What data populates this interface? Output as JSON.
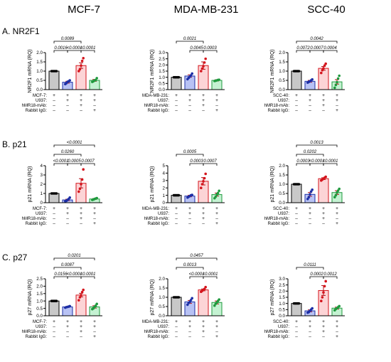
{
  "columns": [
    "MCF-7",
    "MDA-MB-231",
    "SCC-40"
  ],
  "rows": [
    "A. NR2F1",
    "B. p21",
    "C. p27"
  ],
  "cond_rows": [
    {
      "label_by_col": [
        "MCF-7:",
        "MDA-MB-231:",
        "SCC-40:"
      ],
      "signs": [
        "+",
        "+",
        "+",
        "+"
      ]
    },
    {
      "label": "U937:",
      "signs": [
        "–",
        "+",
        "+",
        "+"
      ]
    },
    {
      "label": "hMR18-mAb:",
      "signs": [
        "–",
        "–",
        "+",
        "–"
      ]
    },
    {
      "label": "Rabbit IgG:",
      "signs": [
        "–",
        "–",
        "–",
        "+"
      ]
    }
  ],
  "colors": {
    "bar_fills": [
      "#c8c8c8",
      "#b8c2f4",
      "#fcd4d6",
      "#c4f2d2"
    ],
    "bar_strokes": [
      "#000000",
      "#1d2fa6",
      "#d4141c",
      "#1f9a3e"
    ],
    "point_colors": [
      "#000000",
      "#1d2fa6",
      "#d4141c",
      "#1f9a3e"
    ],
    "errbar": "#b4141a"
  },
  "chart_data": [
    {
      "type": "bar",
      "row": 0,
      "col": 0,
      "cell_line": "MCF-7",
      "ylabel": "NR2F1 mRNA (RQ)",
      "ylim": [
        0,
        2.0
      ],
      "yticks": [
        "0.0",
        "0.5",
        "1.0",
        "1.5",
        "2.0"
      ],
      "tick_values": [
        0,
        0.5,
        1.0,
        1.5,
        2.0
      ],
      "values": [
        1.0,
        0.4,
        1.3,
        0.5
      ],
      "errors": [
        0,
        0.05,
        0.15,
        0.05
      ],
      "points": [
        [
          1,
          1,
          1,
          1,
          1
        ],
        [
          0.3,
          0.35,
          0.42,
          0.45,
          0.5
        ],
        [
          1.0,
          1.1,
          1.3,
          1.55,
          1.7
        ],
        [
          0.42,
          0.45,
          0.5,
          0.52,
          0.62
        ]
      ],
      "comparisons": [
        {
          "from": 0,
          "to": 1,
          "level": 1,
          "p": "0.0016"
        },
        {
          "from": 1,
          "to": 2,
          "level": 1,
          "p": "<0.0001"
        },
        {
          "from": 2,
          "to": 3,
          "level": 1,
          "p": "<0.0001"
        },
        {
          "from": 0,
          "to": 2,
          "level": 2,
          "p": "0.0089"
        }
      ]
    },
    {
      "type": "bar",
      "row": 0,
      "col": 1,
      "cell_line": "MDA-MB-231",
      "ylabel": "NR2F1 mRNA (RQ)",
      "ylim": [
        0,
        3.0
      ],
      "yticks": [
        "0.0",
        "0.5",
        "1.0",
        "1.5",
        "2.0",
        "2.5",
        "3.0"
      ],
      "tick_values": [
        0,
        0.5,
        1.0,
        1.5,
        2.0,
        2.5,
        3.0
      ],
      "values": [
        1.0,
        1.1,
        1.95,
        0.75
      ],
      "errors": [
        0,
        0.1,
        0.3,
        0.05
      ],
      "points": [
        [
          1,
          1,
          1,
          1,
          1
        ],
        [
          0.85,
          0.95,
          1.05,
          1.15,
          1.3
        ],
        [
          1.5,
          1.7,
          1.9,
          2.2,
          2.5
        ],
        [
          0.7,
          0.72,
          0.75,
          0.78,
          0.8
        ]
      ],
      "comparisons": [
        {
          "from": 1,
          "to": 2,
          "level": 1,
          "p": "0.0045"
        },
        {
          "from": 2,
          "to": 3,
          "level": 1,
          "p": "0.0003"
        },
        {
          "from": 0,
          "to": 2,
          "level": 2,
          "p": "0.0021"
        }
      ]
    },
    {
      "type": "bar",
      "row": 0,
      "col": 2,
      "cell_line": "SCC-40",
      "ylabel": "NR2F1 mRNA (RQ)",
      "ylim": [
        0,
        2.0
      ],
      "yticks": [
        "0.0",
        "0.5",
        "1.0",
        "1.5",
        "2.0"
      ],
      "tick_values": [
        0,
        0.5,
        1.0,
        1.5,
        2.0
      ],
      "values": [
        1.0,
        0.45,
        1.15,
        0.42
      ],
      "errors": [
        0,
        0.05,
        0.1,
        0.12
      ],
      "points": [
        [
          1,
          1,
          1,
          1,
          1
        ],
        [
          0.38,
          0.42,
          0.45,
          0.5,
          0.55
        ],
        [
          0.9,
          1.05,
          1.15,
          1.3,
          1.4
        ],
        [
          0.1,
          0.25,
          0.4,
          0.6,
          0.75
        ]
      ],
      "comparisons": [
        {
          "from": 0,
          "to": 1,
          "level": 1,
          "p": "0.0072"
        },
        {
          "from": 1,
          "to": 2,
          "level": 1,
          "p": "0.0007"
        },
        {
          "from": 2,
          "to": 3,
          "level": 1,
          "p": "0.0004"
        },
        {
          "from": 0,
          "to": 3,
          "level": 2,
          "p": "0.0042"
        }
      ]
    },
    {
      "type": "bar",
      "row": 1,
      "col": 0,
      "cell_line": "MCF-7",
      "ylabel": "p21 mRNA (RQ)",
      "ylim": [
        0,
        4.0
      ],
      "yticks": [
        "0",
        "1",
        "2",
        "3",
        "4"
      ],
      "tick_values": [
        0,
        1,
        2,
        3,
        4
      ],
      "values": [
        1.0,
        0.3,
        2.1,
        0.4
      ],
      "errors": [
        0,
        0.08,
        0.5,
        0.05
      ],
      "points": [
        [
          1,
          1,
          1,
          1,
          1
        ],
        [
          0.15,
          0.2,
          0.3,
          0.4,
          0.55
        ],
        [
          1.2,
          1.5,
          2.0,
          2.5,
          3.6
        ],
        [
          0.3,
          0.35,
          0.4,
          0.45,
          0.5
        ]
      ],
      "comparisons": [
        {
          "from": 0,
          "to": 1,
          "level": 1,
          "p": "<0.0001"
        },
        {
          "from": 1,
          "to": 2,
          "level": 1,
          "p": "0.0005"
        },
        {
          "from": 2,
          "to": 3,
          "level": 1,
          "p": "0.0007"
        },
        {
          "from": 0,
          "to": 2,
          "level": 2,
          "p": "0.0260"
        },
        {
          "from": 0,
          "to": 3,
          "level": 3,
          "p": "<0.0001"
        }
      ]
    },
    {
      "type": "bar",
      "row": 1,
      "col": 1,
      "cell_line": "MDA-MB-231",
      "ylabel": "p21 mRNA (RQ)",
      "ylim": [
        0,
        5.0
      ],
      "yticks": [
        "0",
        "1",
        "2",
        "3",
        "4",
        "5"
      ],
      "tick_values": [
        0,
        1,
        2,
        3,
        4,
        5
      ],
      "values": [
        1.0,
        0.9,
        2.9,
        1.1
      ],
      "errors": [
        0,
        0.1,
        0.5,
        0.2
      ],
      "points": [
        [
          1,
          1,
          1,
          1,
          1
        ],
        [
          0.7,
          0.8,
          0.9,
          1.0,
          1.05
        ],
        [
          2.0,
          2.5,
          2.9,
          3.3,
          3.9
        ],
        [
          0.6,
          0.8,
          1.1,
          1.3,
          1.6
        ]
      ],
      "comparisons": [
        {
          "from": 1,
          "to": 2,
          "level": 1,
          "p": "0.0003"
        },
        {
          "from": 2,
          "to": 3,
          "level": 1,
          "p": "0.0007"
        },
        {
          "from": 0,
          "to": 2,
          "level": 2,
          "p": "0.0005"
        }
      ]
    },
    {
      "type": "bar",
      "row": 1,
      "col": 2,
      "cell_line": "SCC-40",
      "ylabel": "p21 mRNA (RQ)",
      "ylim": [
        0,
        2.0
      ],
      "yticks": [
        "0.0",
        "0.5",
        "1.0",
        "1.5",
        "2.0"
      ],
      "tick_values": [
        0,
        0.5,
        1.0,
        1.5,
        2.0
      ],
      "values": [
        1.0,
        0.45,
        1.3,
        0.55
      ],
      "errors": [
        0,
        0.1,
        0.05,
        0.1
      ],
      "points": [
        [
          1,
          1,
          1,
          1,
          1
        ],
        [
          0.2,
          0.3,
          0.45,
          0.6,
          0.7
        ],
        [
          1.2,
          1.25,
          1.3,
          1.35,
          1.4
        ],
        [
          0.3,
          0.4,
          0.55,
          0.65,
          0.75
        ]
      ],
      "comparisons": [
        {
          "from": 0,
          "to": 1,
          "level": 1,
          "p": "0.0003"
        },
        {
          "from": 1,
          "to": 2,
          "level": 1,
          "p": "<0.0001"
        },
        {
          "from": 2,
          "to": 3,
          "level": 1,
          "p": "<0.0001"
        },
        {
          "from": 0,
          "to": 2,
          "level": 2,
          "p": "0.0202"
        },
        {
          "from": 0,
          "to": 3,
          "level": 3,
          "p": "0.0013"
        }
      ]
    },
    {
      "type": "bar",
      "row": 2,
      "col": 0,
      "cell_line": "MCF-7",
      "ylabel": "p27 mRNA (RQ)",
      "ylim": [
        0,
        2.5
      ],
      "yticks": [
        "0.0",
        "0.5",
        "1.0",
        "1.5",
        "2.0",
        "2.5"
      ],
      "tick_values": [
        0,
        0.5,
        1.0,
        1.5,
        2.0,
        2.5
      ],
      "values": [
        1.0,
        0.6,
        1.4,
        0.6
      ],
      "errors": [
        0,
        0.03,
        0.12,
        0.08
      ],
      "points": [
        [
          1,
          1,
          1,
          1,
          1
        ],
        [
          0.55,
          0.58,
          0.6,
          0.62,
          0.65
        ],
        [
          1.05,
          1.25,
          1.4,
          1.6,
          1.75
        ],
        [
          0.45,
          0.5,
          0.6,
          0.68,
          0.8
        ]
      ],
      "comparisons": [
        {
          "from": 0,
          "to": 1,
          "level": 1,
          "p": "0.0156"
        },
        {
          "from": 1,
          "to": 2,
          "level": 1,
          "p": "<0.0001"
        },
        {
          "from": 2,
          "to": 3,
          "level": 1,
          "p": "<0.0001"
        },
        {
          "from": 0,
          "to": 2,
          "level": 2,
          "p": "0.0087"
        },
        {
          "from": 0,
          "to": 3,
          "level": 3,
          "p": "0.0201"
        }
      ]
    },
    {
      "type": "bar",
      "row": 2,
      "col": 1,
      "cell_line": "MDA-MB-231",
      "ylabel": "p27 mRNA (RQ)",
      "ylim": [
        0,
        2.0
      ],
      "yticks": [
        "0.0",
        "0.5",
        "1.0",
        "1.5",
        "2.0"
      ],
      "tick_values": [
        0,
        0.5,
        1.0,
        1.5,
        2.0
      ],
      "values": [
        1.0,
        0.75,
        1.4,
        0.72
      ],
      "errors": [
        0,
        0.08,
        0.05,
        0.08
      ],
      "points": [
        [
          1,
          1,
          1,
          1,
          1
        ],
        [
          0.6,
          0.7,
          0.75,
          0.85,
          0.95
        ],
        [
          1.3,
          1.35,
          1.4,
          1.45,
          1.55
        ],
        [
          0.55,
          0.65,
          0.72,
          0.8,
          0.88
        ]
      ],
      "comparisons": [
        {
          "from": 1,
          "to": 2,
          "level": 1,
          "p": "<0.0001"
        },
        {
          "from": 2,
          "to": 3,
          "level": 1,
          "p": "<0.0001"
        },
        {
          "from": 0,
          "to": 2,
          "level": 2,
          "p": "0.0013"
        },
        {
          "from": 0,
          "to": 3,
          "level": 3,
          "p": "0.0457"
        }
      ]
    },
    {
      "type": "bar",
      "row": 2,
      "col": 2,
      "cell_line": "SCC-40",
      "ylabel": "p27 mRNA (RQ)",
      "ylim": [
        0,
        3.0
      ],
      "yticks": [
        "0.0",
        "0.5",
        "1.0",
        "1.5",
        "2.0",
        "2.5",
        "3.0"
      ],
      "tick_values": [
        0,
        0.5,
        1.0,
        1.5,
        2.0,
        2.5,
        3.0
      ],
      "values": [
        1.0,
        0.4,
        2.05,
        0.62
      ],
      "errors": [
        0,
        0.08,
        0.4,
        0.08
      ],
      "points": [
        [
          1,
          1,
          1,
          1,
          1
        ],
        [
          0.25,
          0.3,
          0.4,
          0.5,
          0.6
        ],
        [
          1.2,
          1.5,
          1.9,
          2.4,
          2.8
        ],
        [
          0.45,
          0.55,
          0.62,
          0.7,
          0.78
        ]
      ],
      "comparisons": [
        {
          "from": 1,
          "to": 2,
          "level": 1,
          "p": "0.0002"
        },
        {
          "from": 2,
          "to": 3,
          "level": 1,
          "p": "0.0012"
        },
        {
          "from": 0,
          "to": 2,
          "level": 2,
          "p": "0.0111"
        }
      ]
    }
  ]
}
